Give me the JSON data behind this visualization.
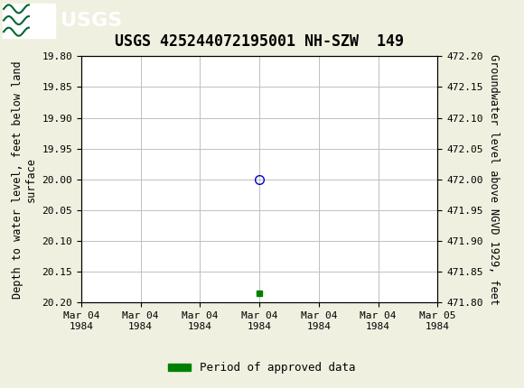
{
  "title": "USGS 425244072195001 NH-SZW  149",
  "ylabel_left": "Depth to water level, feet below land\nsurface",
  "ylabel_right": "Groundwater level above NGVD 1929, feet",
  "ylim_left_top": 19.8,
  "ylim_left_bottom": 20.2,
  "ylim_right_top": 472.2,
  "ylim_right_bottom": 471.8,
  "yticks_left": [
    19.8,
    19.85,
    19.9,
    19.95,
    20.0,
    20.05,
    20.1,
    20.15,
    20.2
  ],
  "yticks_right": [
    472.2,
    472.15,
    472.1,
    472.05,
    472.0,
    471.95,
    471.9,
    471.85,
    471.8
  ],
  "xlim": [
    0,
    6
  ],
  "xtick_labels": [
    "Mar 04\n1984",
    "Mar 04\n1984",
    "Mar 04\n1984",
    "Mar 04\n1984",
    "Mar 04\n1984",
    "Mar 04\n1984",
    "Mar 05\n1984"
  ],
  "xtick_positions": [
    0,
    1,
    2,
    3,
    4,
    5,
    6
  ],
  "data_point_x": 3,
  "data_point_y": 20.0,
  "data_point_color": "#0000cc",
  "data_point_marker": "o",
  "bar_x": 3,
  "bar_y_left": 20.185,
  "bar_color": "#008000",
  "header_color": "#006633",
  "header_text_color": "#ffffff",
  "background_color": "#f0f0e0",
  "plot_background": "#ffffff",
  "grid_color": "#c0c0c0",
  "legend_label": "Period of approved data",
  "legend_color": "#008000",
  "title_fontsize": 12,
  "axis_label_fontsize": 8.5,
  "tick_fontsize": 8,
  "font_family": "monospace"
}
